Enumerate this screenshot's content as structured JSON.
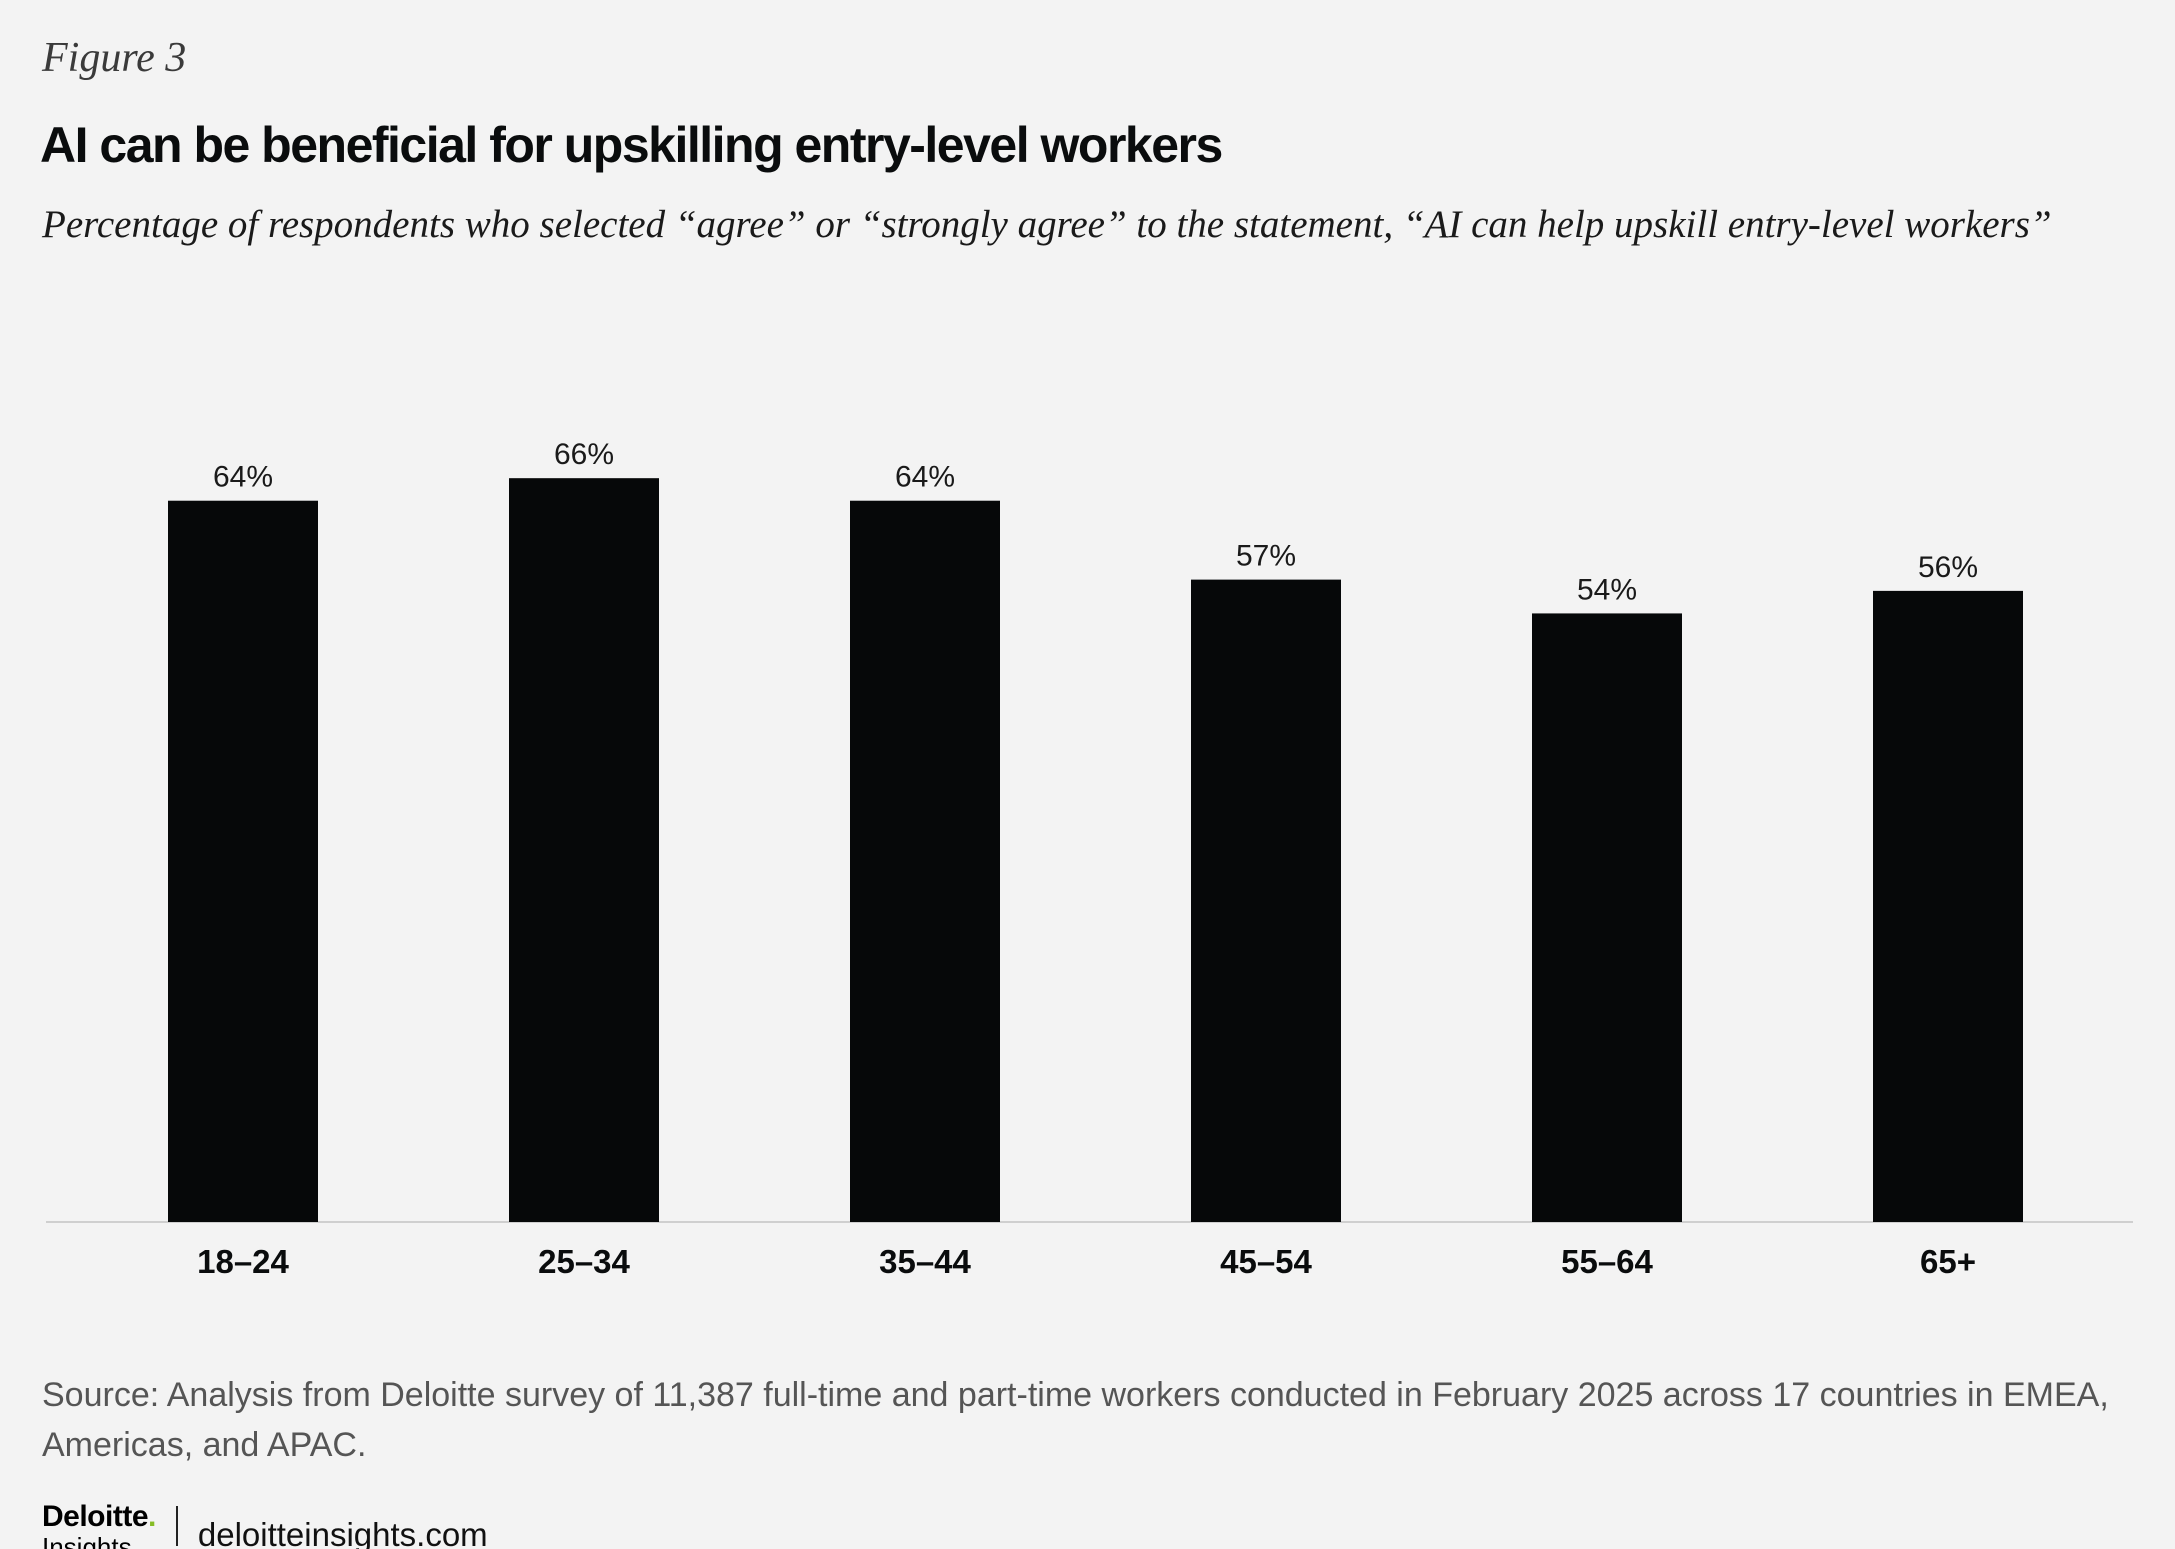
{
  "figure_label": "Figure 3",
  "chart_data": {
    "type": "bar",
    "title": "AI can be beneficial for upskilling entry-level workers",
    "subtitle": "Percentage of respondents who selected “agree” or “strongly agree” to the statement, “AI can help upskill entry-level workers”",
    "categories": [
      "18–24",
      "25–34",
      "35–44",
      "45–54",
      "55–64",
      "65+"
    ],
    "values": [
      64,
      66,
      64,
      57,
      54,
      56
    ],
    "value_labels": [
      "64%",
      "66%",
      "64%",
      "57%",
      "54%",
      "56%"
    ],
    "xlabel": "",
    "ylabel": "",
    "ylim": [
      0,
      70
    ],
    "grid": false,
    "bar_color": "#060809",
    "axis_color": "#cfcfcf"
  },
  "source": "Source: Analysis from Deloitte survey of 11,387 full-time and part-time workers conducted in February 2025 across 17 countries in EMEA, Americas, and APAC.",
  "footer": {
    "logo_word": "Deloitte",
    "logo_dot": ".",
    "logo_sub": "Insights",
    "url": "deloitteinsights.com"
  },
  "colors": {
    "background": "#f3f3f3",
    "brand_green": "#86bc25"
  }
}
